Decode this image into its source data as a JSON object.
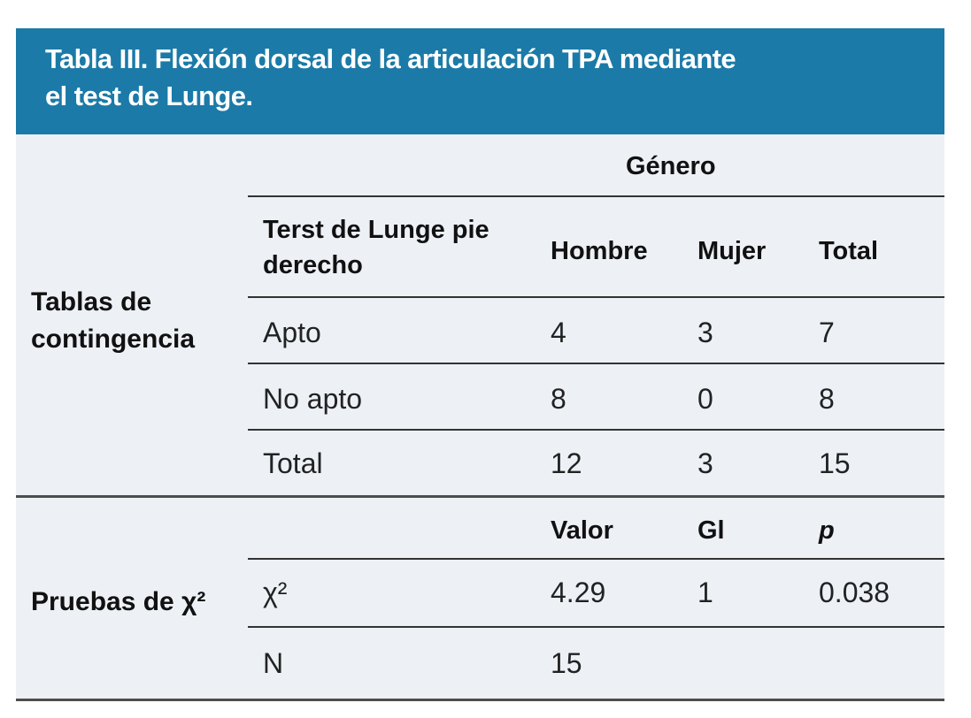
{
  "title": {
    "line1": "Tabla III. Flexión dorsal de la articulación TPA mediante",
    "line2": "el test de Lunge."
  },
  "colors": {
    "header_bg": "#1b7aa7",
    "title_text": "#ffffff",
    "body_bg": "#edf1f6",
    "text": "#1c1c1c",
    "rule": "#333333",
    "section_rule": "#4d4d4d"
  },
  "contingency": {
    "section_label_line1": "Tablas de",
    "section_label_line2": "contingencia",
    "group_header": "Género",
    "row_header_line1": "Terst de Lunge pie",
    "row_header_line2": "derecho",
    "columns": [
      "Hombre",
      "Mujer",
      "Total"
    ],
    "rows": [
      {
        "label": "Apto",
        "values": [
          "4",
          "3",
          "7"
        ]
      },
      {
        "label": "No apto",
        "values": [
          "8",
          "0",
          "8"
        ]
      },
      {
        "label": "Total",
        "values": [
          "12",
          "3",
          "15"
        ]
      }
    ]
  },
  "chi_square": {
    "section_label": "Pruebas de χ²",
    "columns": [
      "Valor",
      "Gl",
      "p"
    ],
    "rows": [
      {
        "label": "χ²",
        "values": [
          "4.29",
          "1",
          "0.038"
        ]
      },
      {
        "label": "N",
        "values": [
          "15",
          "",
          ""
        ]
      }
    ]
  }
}
